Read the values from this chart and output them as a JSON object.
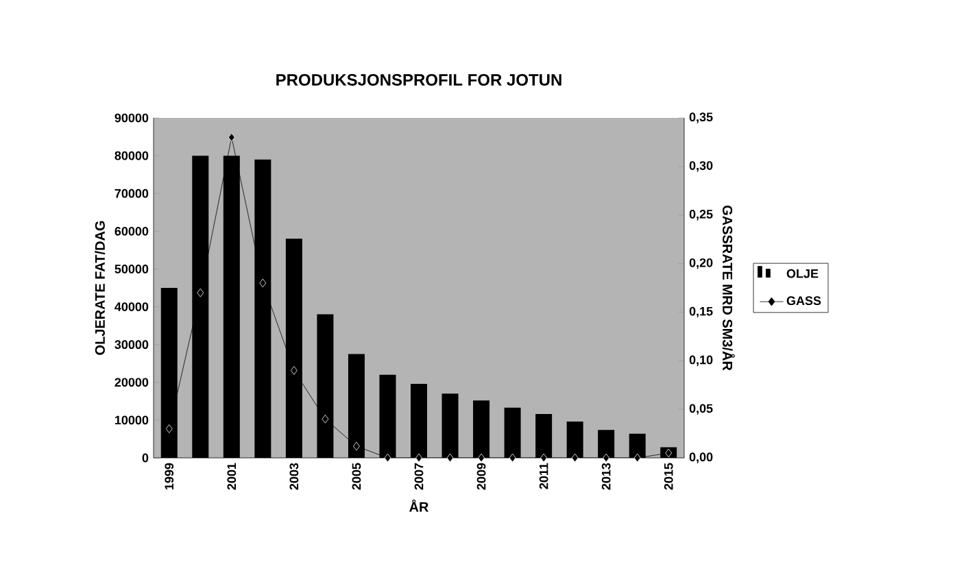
{
  "chart_data": {
    "type": "bar",
    "title": "PRODUKSJONSPROFIL FOR JOTUN",
    "xlabel": "ÅR",
    "ylabel": "OLJERATE FAT/DAG",
    "y2label": "GASSRATE MRD SM3/ÅR",
    "categories": [
      "1999",
      null,
      "2001",
      null,
      "2003",
      null,
      "2005",
      null,
      "2007",
      null,
      "2009",
      null,
      "2011",
      null,
      "2013",
      null,
      "2015"
    ],
    "series": [
      {
        "name": "OLJE",
        "color": "#000000",
        "values": [
          45000,
          80000,
          80000,
          79000,
          58000,
          38000,
          27500,
          22000,
          19600,
          17000,
          15200,
          13300,
          11600,
          9600,
          7400,
          6400,
          2800
        ]
      },
      {
        "name": "GASS",
        "type": "line",
        "axis": "y2",
        "color": "#000000",
        "marker": "diamond",
        "values": [
          0.03,
          0.17,
          0.33,
          0.18,
          0.09,
          0.04,
          0.012,
          0,
          0,
          0,
          0,
          0,
          0,
          0,
          0,
          0,
          0.005
        ]
      }
    ],
    "ylim": [
      0,
      90000
    ],
    "yticks": [
      0,
      10000,
      20000,
      30000,
      40000,
      50000,
      60000,
      70000,
      80000,
      90000
    ],
    "y2lim": [
      0,
      0.35
    ],
    "y2ticks": [
      {
        "value": 0,
        "label": "0,00"
      },
      {
        "value": 0.05,
        "label": "0,05"
      },
      {
        "value": 0.1,
        "label": "0,10"
      },
      {
        "value": 0.15,
        "label": "0,15"
      },
      {
        "value": 0.2,
        "label": "0,20"
      },
      {
        "value": 0.25,
        "label": "0,25"
      },
      {
        "value": 0.3,
        "label": "0,30"
      },
      {
        "value": 0.35,
        "label": "0,35"
      }
    ],
    "legend": "right",
    "grid": false
  }
}
